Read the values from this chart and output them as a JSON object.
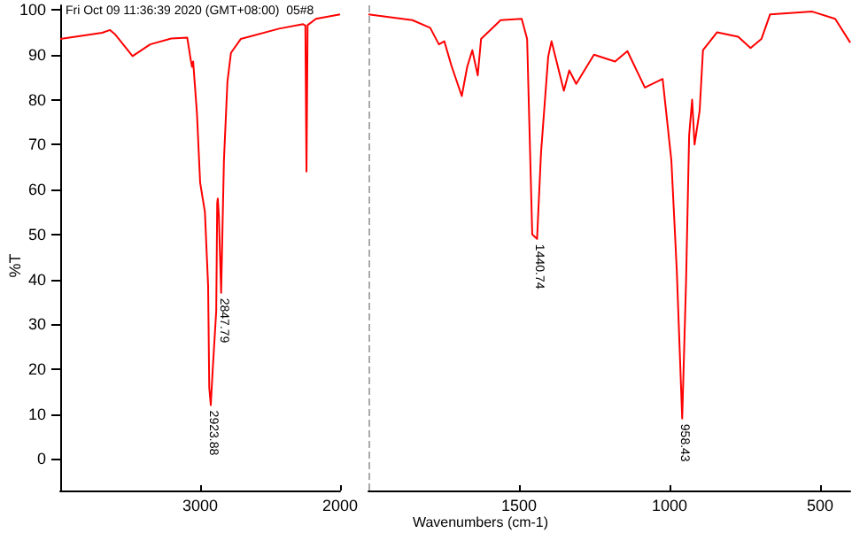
{
  "chart_data": [
    {
      "type": "line",
      "ylabel": "%T",
      "annotations": [
        "Fri Oct 09 11:36:39 2020 (GMT+08:00)  05#8",
        {
          "text": "2923.88",
          "x": 2923.88,
          "y": 12
        },
        {
          "text": "2847.79",
          "x": 2847.79,
          "y": 37
        }
      ],
      "series": [
        {
          "color": "#ff0000",
          "x": [
            4000,
            3700,
            3644,
            3610,
            3483,
            3357,
            3207,
            3092,
            3069,
            3058,
            3050,
            3023,
            3000,
            2966,
            2943,
            2935,
            2924,
            2910,
            2885,
            2878,
            2874,
            2866,
            2850,
            2830,
            2805,
            2780,
            2710,
            2436,
            2264,
            2248,
            2240,
            2232,
            2172,
            2000
          ],
          "values": [
            93.5,
            94.9,
            95.5,
            94.6,
            89.7,
            92.3,
            93.6,
            93.8,
            89.2,
            87.3,
            88.5,
            77,
            61.5,
            55,
            38.5,
            16,
            12,
            20,
            33,
            57,
            58,
            54,
            37,
            66.5,
            84,
            90.4,
            93.5,
            95.8,
            96.8,
            96.5,
            64,
            96.6,
            98,
            99
          ]
        }
      ],
      "xlim": [
        4000,
        2000
      ],
      "xticks": [
        3000,
        2000
      ],
      "ylim": [
        -7,
        101
      ],
      "yticks": [
        0,
        10,
        20,
        30,
        40,
        50,
        60,
        70,
        80,
        90,
        100
      ]
    },
    {
      "type": "line",
      "xlabel": "Wavenumbers (cm-1)",
      "annotations": [
        {
          "text": "1440.74",
          "x": 1440.74,
          "y": 49
        },
        {
          "text": "958.43",
          "x": 958.43,
          "y": 9
        }
      ],
      "series": [
        {
          "color": "#ff0000",
          "x": [
            2000,
            1854,
            1795,
            1766,
            1748,
            1725,
            1690,
            1672,
            1655,
            1637,
            1626,
            1561,
            1491,
            1473,
            1456,
            1440,
            1427,
            1403,
            1392,
            1351,
            1333,
            1310,
            1251,
            1181,
            1140,
            1082,
            1023,
            994,
            976,
            958,
            945,
            935,
            925,
            917,
            900,
            889,
            842,
            772,
            731,
            695,
            666,
            526,
            450,
            400
          ],
          "values": [
            99,
            97.7,
            96,
            92.3,
            93,
            87.7,
            80.8,
            87.3,
            91,
            85.4,
            93.5,
            97.7,
            98,
            93.5,
            50,
            49,
            68,
            89.6,
            93,
            82,
            86.5,
            83.5,
            90,
            88.5,
            90.8,
            82.7,
            84.6,
            66.5,
            42,
            9,
            40,
            72,
            80,
            70,
            77.6,
            91,
            95,
            94,
            91.5,
            93.5,
            99,
            99.6,
            98,
            92.7
          ]
        }
      ],
      "xlim": [
        2000,
        400
      ],
      "xticks": [
        {
          "value": 2000,
          "label": null
        },
        1500,
        1000,
        500
      ],
      "ylim": [
        -7,
        101
      ],
      "yticks": [
        0,
        10,
        20,
        30,
        40,
        50,
        60,
        70,
        80,
        90,
        100
      ],
      "tick_labels": "x",
      "ref_lines": [
        {
          "axis": "x",
          "value": 2000,
          "color": "#aaaaaa",
          "line_style": "dashed"
        }
      ]
    }
  ]
}
